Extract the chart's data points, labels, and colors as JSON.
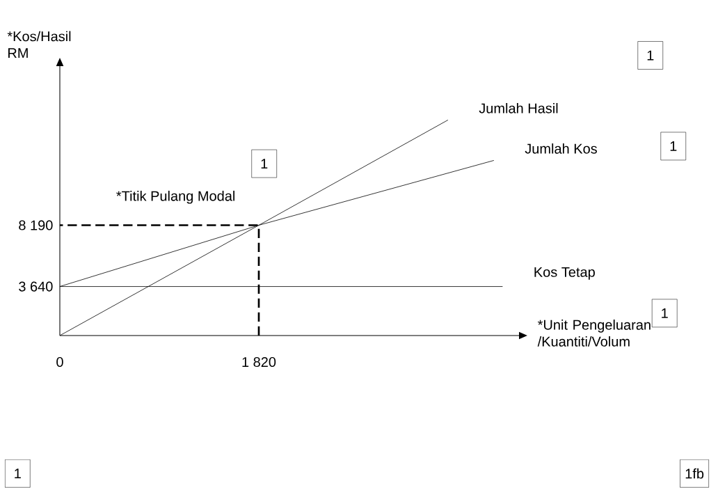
{
  "chart_data": {
    "type": "line",
    "xlabel": "*Unit Pengeluaran /Kuantiti/Volum",
    "ylabel": "*Kos/Hasil RM",
    "series": [
      {
        "name": "Jumlah Hasil",
        "color": "#000000",
        "x": [
          0,
          1820,
          3550
        ],
        "values": [
          0,
          8190,
          16000
        ]
      },
      {
        "name": "Jumlah Kos",
        "color": "#000000",
        "x": [
          0,
          1820,
          3970
        ],
        "values": [
          3640,
          8190,
          13000
        ]
      },
      {
        "name": "Kos Tetap",
        "color": "#000000",
        "x": [
          0,
          4050
        ],
        "values": [
          3640,
          3640
        ]
      },
      {
        "color": "#000000",
        "line_style": "dashed",
        "x": [
          1820,
          1820,
          0
        ],
        "values": [
          0,
          8190,
          8190
        ]
      }
    ],
    "xlim": [
      0,
      4200
    ],
    "ylim": [
      0,
      20000
    ],
    "xticks": [
      0,
      {
        "value": 1820,
        "label": "1 820"
      }
    ],
    "yticks": [
      {
        "value": 3640,
        "label": "3 640"
      },
      {
        "value": 8190,
        "label": "8 190"
      }
    ],
    "annotations": [
      {
        "text": "*Titik Pulang Modal",
        "x": 1820,
        "y": 8190
      },
      "1",
      "1",
      "1",
      "1",
      "1",
      "1fb"
    ],
    "line_style": "solid",
    "grid": false
  }
}
